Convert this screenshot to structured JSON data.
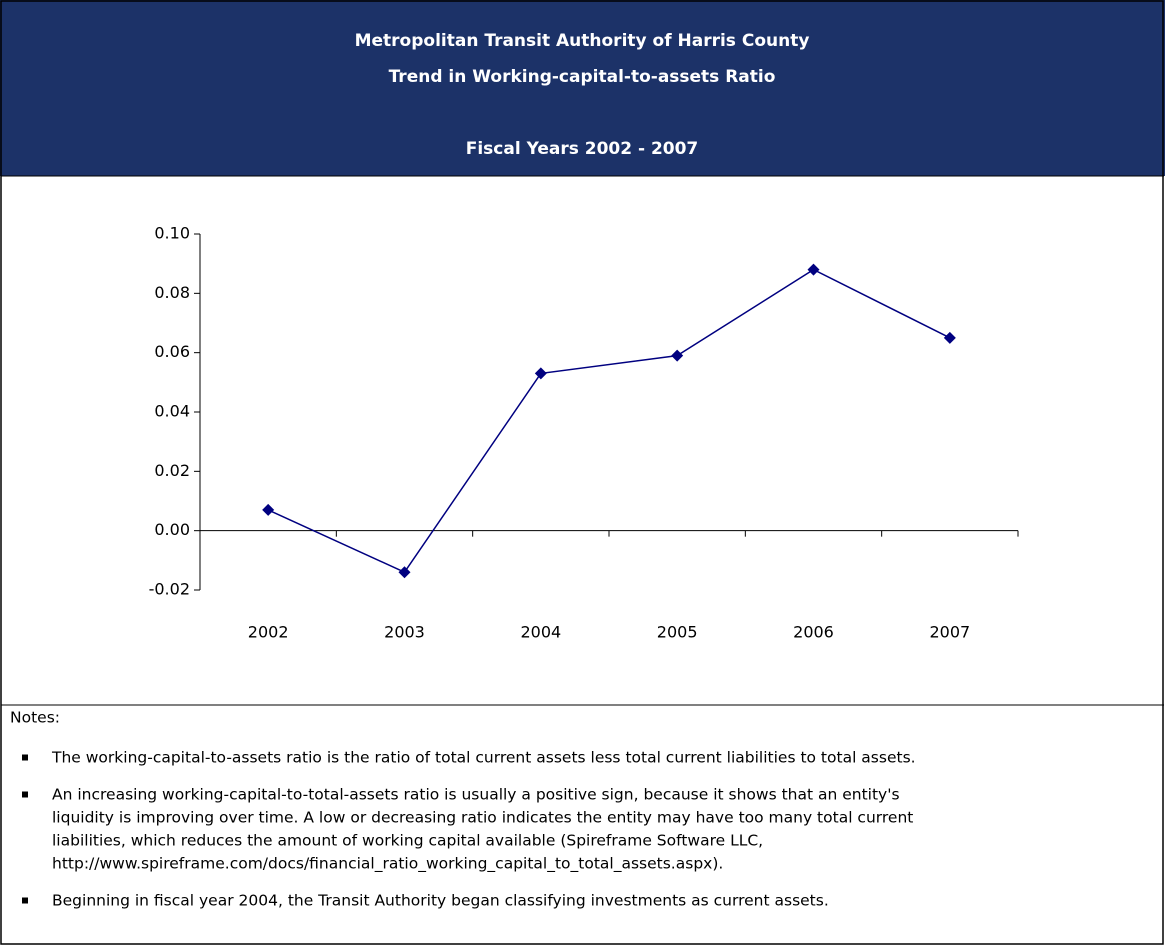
{
  "chart_data": {
    "type": "line",
    "title": [
      "Metropolitan Transit Authority of Harris County",
      "Trend in Working-capital-to-assets Ratio",
      "Fiscal Years 2002 - 2007"
    ],
    "categories": [
      "2002",
      "2003",
      "2004",
      "2005",
      "2006",
      "2007"
    ],
    "series": [
      {
        "color": "#000080",
        "values": [
          0.007,
          -0.014,
          0.053,
          0.059,
          0.088,
          0.065
        ]
      }
    ],
    "ylim": [
      -0.02,
      0.1
    ],
    "yticks": [
      {
        "value": -0.02,
        "label": "-0.02"
      },
      {
        "value": 0,
        "label": "0.00"
      },
      {
        "value": 0.02,
        "label": "0.02"
      },
      {
        "value": 0.04,
        "label": "0.04"
      },
      {
        "value": 0.06,
        "label": "0.06"
      },
      {
        "value": 0.08,
        "label": "0.08"
      },
      {
        "value": 0.1,
        "label": "0.10"
      }
    ],
    "grid": false
  },
  "notes": {
    "heading": "Notes:",
    "items": [
      [
        "The working-capital-to-assets ratio is the ratio of total current assets less total current liabilities to total assets."
      ],
      [
        "An increasing working-capital-to-total-assets ratio is usually a positive sign, because it shows that an entity's",
        "liquidity is improving over time. A low or decreasing ratio indicates the entity may have too many total current",
        "liabilities, which reduces the amount of working capital available (Spireframe Software LLC,",
        "http://www.spireframe.com/docs/financial_ratio_working_capital_to_total_assets.aspx)."
      ],
      [
        "Beginning in fiscal year 2004, the Transit Authority began classifying investments as current assets."
      ]
    ]
  }
}
